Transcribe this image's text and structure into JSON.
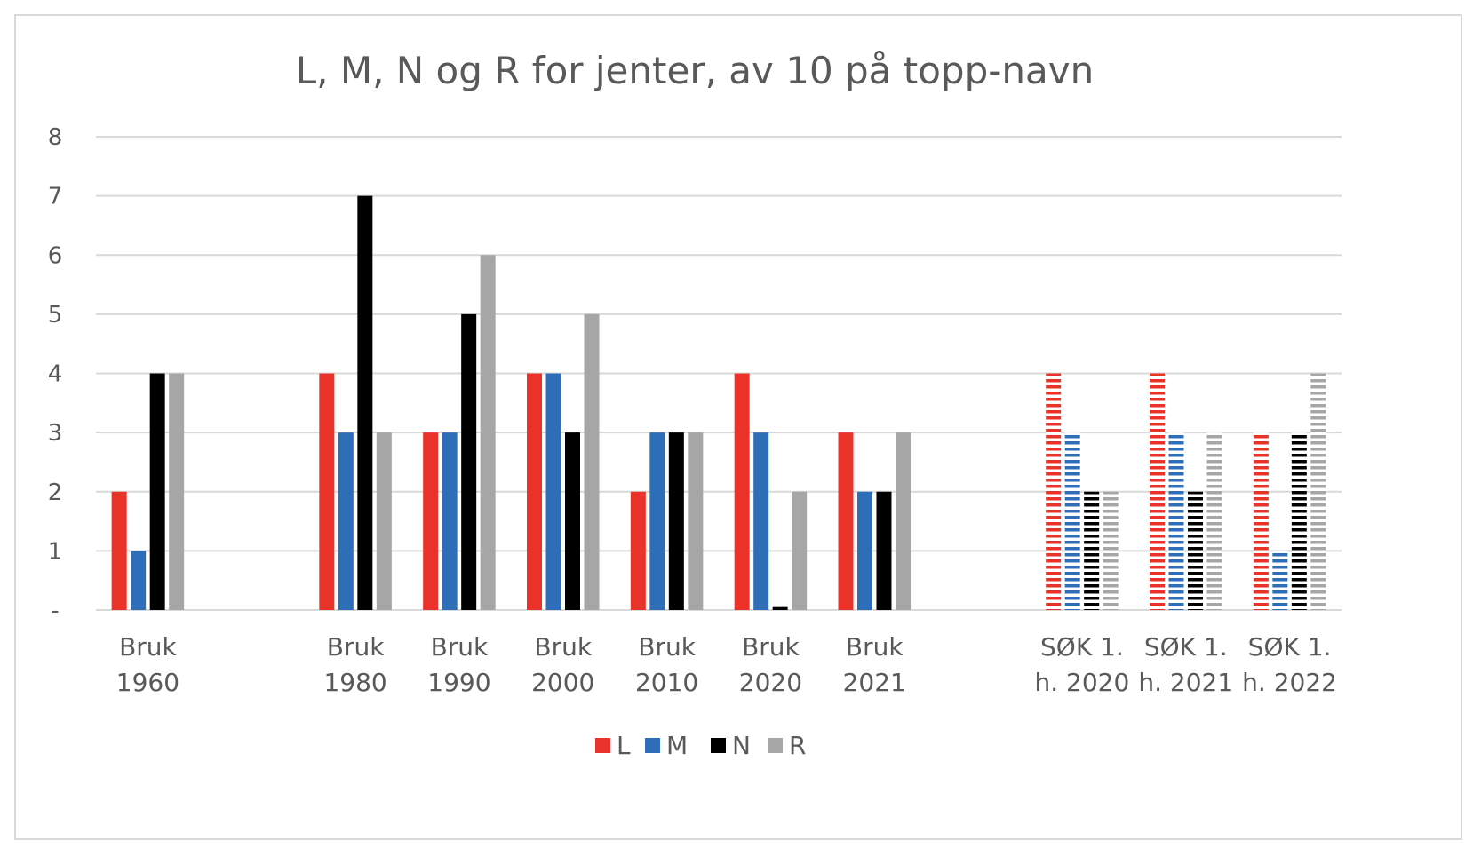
{
  "chart_data": {
    "type": "bar",
    "title": "L, M, N og R for jenter, av 10 på topp-navn",
    "xlabel": "",
    "ylabel": "",
    "ylim": [
      0,
      8
    ],
    "yticks": [
      "-",
      "1",
      "2",
      "3",
      "4",
      "5",
      "6",
      "7",
      "8"
    ],
    "grid": true,
    "legend_position": "bottom",
    "categories": [
      {
        "line1": "Bruk",
        "line2": "1960",
        "pattern": "solid"
      },
      {
        "line1": "",
        "line2": "",
        "pattern": "none"
      },
      {
        "line1": "Bruk",
        "line2": "1980",
        "pattern": "solid"
      },
      {
        "line1": "Bruk",
        "line2": "1990",
        "pattern": "solid"
      },
      {
        "line1": "Bruk",
        "line2": "2000",
        "pattern": "solid"
      },
      {
        "line1": "Bruk",
        "line2": "2010",
        "pattern": "solid"
      },
      {
        "line1": "Bruk",
        "line2": "2020",
        "pattern": "solid"
      },
      {
        "line1": "Bruk",
        "line2": "2021",
        "pattern": "solid"
      },
      {
        "line1": "",
        "line2": "",
        "pattern": "none"
      },
      {
        "line1": "SØK 1.",
        "line2": "h. 2020",
        "pattern": "striped"
      },
      {
        "line1": "SØK 1.",
        "line2": "h. 2021",
        "pattern": "striped"
      },
      {
        "line1": "SØK 1.",
        "line2": "h. 2022",
        "pattern": "striped"
      }
    ],
    "series": [
      {
        "name": "L",
        "color": "#e8322a",
        "values": [
          2,
          null,
          4,
          3,
          4,
          2,
          4,
          3,
          null,
          4,
          4,
          3
        ]
      },
      {
        "name": "M",
        "color": "#2e6eb8",
        "values": [
          1,
          null,
          3,
          3,
          4,
          3,
          3,
          2,
          null,
          3,
          3,
          1
        ]
      },
      {
        "name": "N",
        "color": "#000000",
        "values": [
          4,
          null,
          7,
          5,
          3,
          3,
          0.05,
          2,
          null,
          2,
          2,
          3
        ]
      },
      {
        "name": "R",
        "color": "#a6a6a6",
        "values": [
          4,
          null,
          3,
          6,
          5,
          3,
          2,
          3,
          null,
          2,
          3,
          4
        ]
      }
    ]
  }
}
